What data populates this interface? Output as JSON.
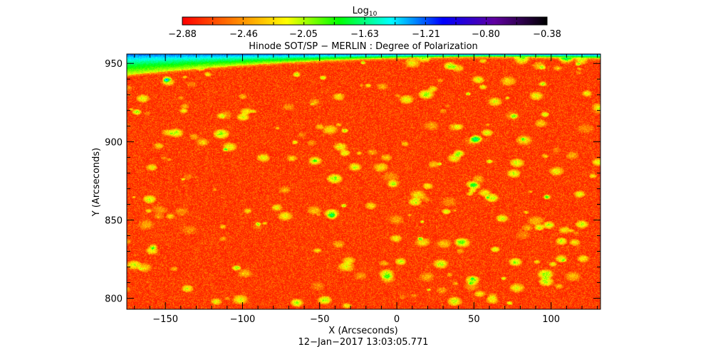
{
  "chart_data": {
    "type": "heatmap",
    "title": "Hinode SOT/SP − MERLIN : Degree of Polarization",
    "xlabel": "X (Arcseconds)",
    "ylabel": "Y (Arcseconds)",
    "footer": "12−Jan−2017 13:03:05.771",
    "xlim": [
      -175,
      132
    ],
    "ylim": [
      793,
      956
    ],
    "xticks": [
      -150,
      -100,
      -50,
      0,
      50,
      100
    ],
    "xtick_labels": [
      "−150",
      "−100",
      "−50",
      "0",
      "50",
      "100"
    ],
    "yticks": [
      800,
      850,
      900,
      950
    ],
    "ytick_labels": [
      "800",
      "850",
      "900",
      "950"
    ],
    "colorbar": {
      "label_base": "Log",
      "label_sub": "10",
      "range": [
        -2.88,
        -0.38
      ],
      "ticks": [
        -2.88,
        -2.46,
        -2.05,
        -1.63,
        -1.21,
        -0.8,
        -0.38
      ],
      "tick_labels": [
        "−2.88",
        "−2.46",
        "−2.05",
        "−1.63",
        "−1.21",
        "−0.80",
        "−0.38"
      ],
      "colormap": [
        "#ff0000",
        "#ff8000",
        "#ffff00",
        "#00ff00",
        "#00ffff",
        "#0000ff",
        "#6000a0",
        "#000000"
      ],
      "placement": "top"
    },
    "description_values": {
      "typical_value": -2.75,
      "off_limb_value": -1.0
    }
  }
}
